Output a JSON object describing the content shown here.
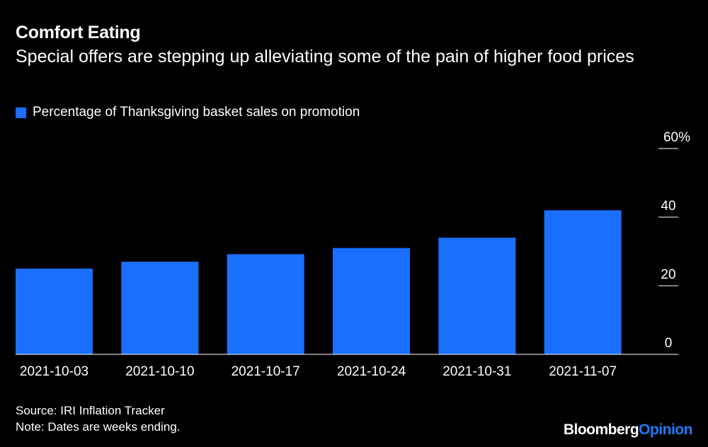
{
  "title": "Comfort Eating",
  "subtitle": "Special offers are stepping up alleviating some of the pain of higher food prices",
  "legend": {
    "label": "Percentage of Thanksgiving basket sales on promotion",
    "color": "#1a6fff"
  },
  "footer": {
    "source": "Source: IRI Inflation Tracker",
    "note": "Note: Dates are weeks ending.",
    "brand_main": "Bloomberg",
    "brand_accent": "Opinion"
  },
  "chart_data": {
    "type": "bar",
    "title": "Comfort Eating",
    "categories": [
      "2021-10-03",
      "2021-10-10",
      "2021-10-17",
      "2021-10-24",
      "2021-10-31",
      "2021-11-07"
    ],
    "series": [
      {
        "name": "Percentage of Thanksgiving basket sales on promotion",
        "values": [
          25,
          27,
          29.2,
          31,
          34,
          42
        ]
      }
    ],
    "ylim": [
      0,
      60
    ],
    "yticks": [
      0,
      20,
      40,
      60
    ],
    "ytick_labels": [
      "0",
      "20",
      "40",
      "60%"
    ],
    "xlabel": "",
    "ylabel": "",
    "legend_position": "top-left",
    "grid": false
  }
}
